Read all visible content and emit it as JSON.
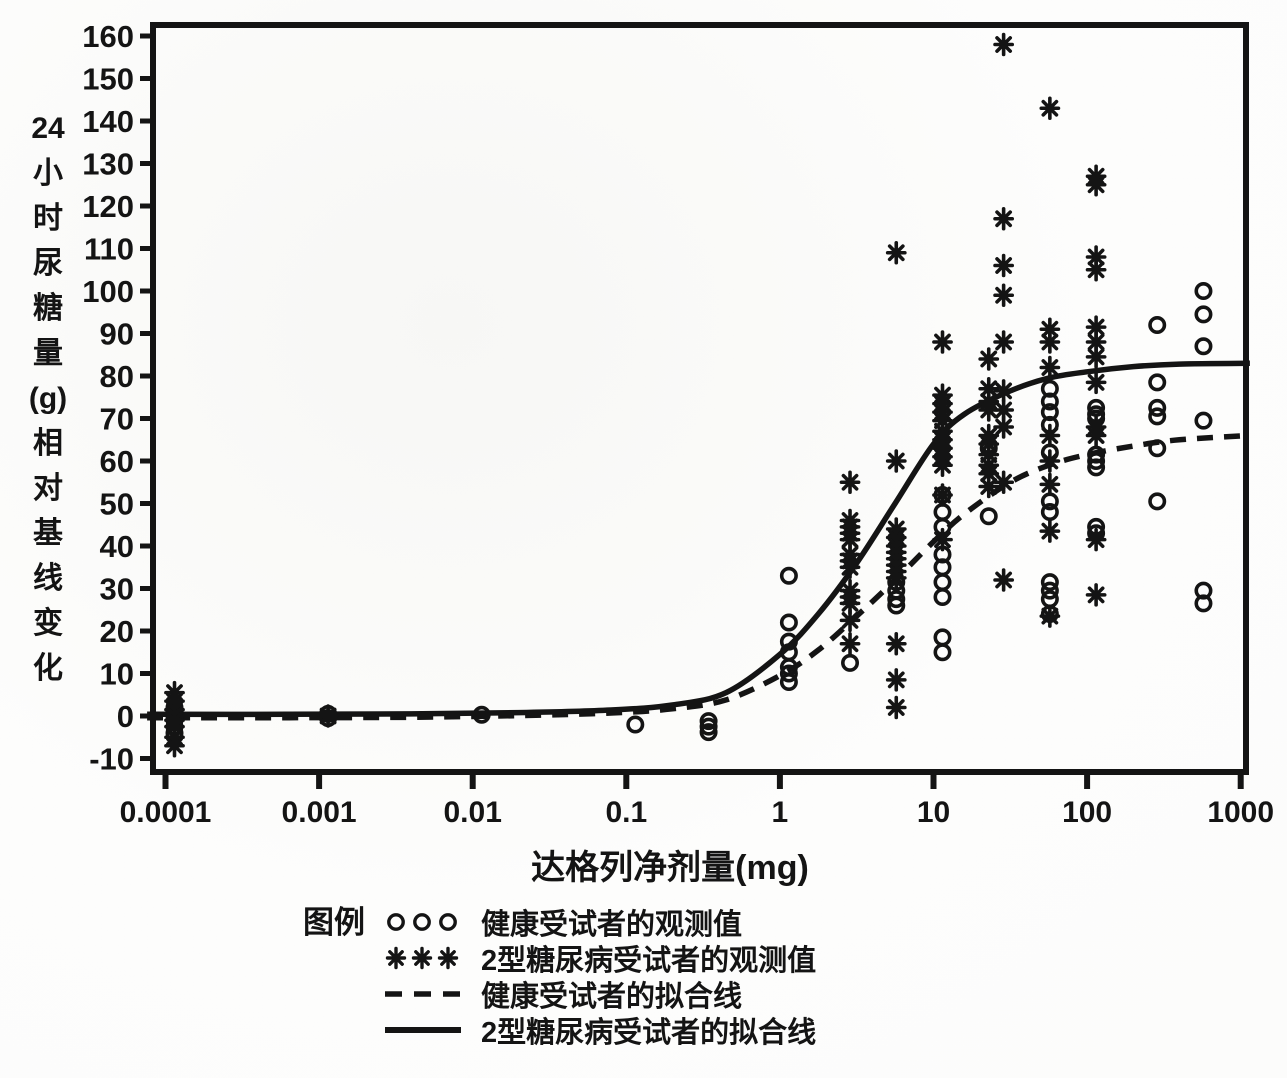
{
  "figure": {
    "background": "#fdfdfc",
    "ink": "#141414"
  },
  "legend": {
    "title": "图例"
  },
  "chart_data": {
    "type": "scatter",
    "title": "",
    "x_axis": {
      "label": "达格列净剂量(mg)",
      "scale": "log",
      "tick_values": [
        0.0001,
        0.001,
        0.01,
        0.1,
        1,
        10,
        100,
        1000
      ],
      "tick_labels": [
        "0.0001",
        "0.001",
        "0.01",
        "0.1",
        "1",
        "10",
        "100",
        "1000"
      ],
      "range_log10": [
        -4.12,
        3.08
      ]
    },
    "y_axis": {
      "label": "24小时尿糖量(g)相对基线变化",
      "label_stack": [
        "24",
        "小",
        "时",
        "尿",
        "糖",
        "量",
        "(g)",
        "相",
        "对",
        "基",
        "线",
        "变",
        "化"
      ],
      "tick_values": [
        160,
        150,
        140,
        130,
        120,
        110,
        100,
        90,
        80,
        70,
        60,
        50,
        40,
        30,
        20,
        10,
        0,
        -10
      ],
      "range": [
        -13,
        163
      ]
    },
    "grid": "off",
    "legend_position": "below",
    "series": [
      {
        "name": "健康受试者的观测值",
        "marker": "circle",
        "clusters": [
          {
            "dose": 0.0001,
            "values": [
              2,
              1,
              0,
              -1,
              -2.5,
              -4
            ]
          },
          {
            "dose": 0.001,
            "values": [
              0.5,
              -0.5
            ]
          },
          {
            "dose": 0.01,
            "values": [
              0.3
            ]
          },
          {
            "dose": 0.1,
            "values": [
              -2
            ]
          },
          {
            "dose": 0.3,
            "values": [
              -1.2,
              -2.5,
              -3.8
            ]
          },
          {
            "dose": 1,
            "values": [
              33,
              22,
              17.5,
              15,
              11.5,
              10,
              8
            ]
          },
          {
            "dose": 2.5,
            "values": [
              12.5
            ]
          },
          {
            "dose": 5,
            "values": [
              31.5,
              29.5,
              27.5,
              26
            ]
          },
          {
            "dose": 10,
            "values": [
              52,
              48,
              44.5,
              38,
              35,
              31.5,
              28,
              18.5,
              15
            ]
          },
          {
            "dose": 20,
            "values": [
              63,
              47
            ]
          },
          {
            "dose": 50,
            "values": [
              77,
              74,
              71.5,
              68.5,
              62,
              50.5,
              48,
              31.5,
              29.5,
              27.5,
              24
            ]
          },
          {
            "dose": 100,
            "values": [
              72.5,
              71,
              70,
              61.5,
              60,
              58.5,
              44.5,
              43
            ]
          },
          {
            "dose": 250,
            "values": [
              92,
              78.5,
              72.5,
              70.5,
              63,
              50.5
            ]
          },
          {
            "dose": 500,
            "values": [
              100,
              94.5,
              87,
              69.5,
              29.5,
              26.5
            ]
          }
        ]
      },
      {
        "name": "2型糖尿病受试者的观测值",
        "marker": "asterisk",
        "clusters": [
          {
            "dose": 0.0001,
            "values": [
              5.5,
              3.5,
              1.5,
              0.3,
              -1,
              -2.5,
              -5,
              -7
            ]
          },
          {
            "dose": 0.001,
            "values": [
              0
            ]
          },
          {
            "dose": 2.5,
            "values": [
              55,
              46,
              44.5,
              43,
              41.5,
              38,
              36.5,
              35,
              29.5,
              28,
              26.5,
              22.5,
              17
            ]
          },
          {
            "dose": 5,
            "values": [
              109,
              60,
              44,
              42,
              40,
              38.5,
              37,
              35.5,
              34,
              32.5,
              17,
              8.5,
              2
            ]
          },
          {
            "dose": 10,
            "values": [
              88,
              75.5,
              73.5,
              71.5,
              69.5,
              67,
              65,
              63,
              61,
              59,
              52,
              41.5
            ]
          },
          {
            "dose": 20,
            "values": [
              84,
              77,
              74,
              72,
              66,
              64,
              61.5,
              59,
              57,
              54
            ]
          },
          {
            "dose": 25,
            "values": [
              158,
              117,
              106,
              99,
              88,
              76.5,
              72,
              68,
              55,
              32
            ]
          },
          {
            "dose": 50,
            "values": [
              143,
              91,
              88,
              82,
              66,
              60,
              54.5,
              43.5,
              23.5
            ]
          },
          {
            "dose": 100,
            "values": [
              127,
              125,
              108,
              105,
              91.5,
              88,
              84.5,
              78.5,
              68,
              66,
              41.5,
              28.5
            ]
          }
        ]
      },
      {
        "name": "健康受试者的拟合线",
        "line": "dashed",
        "curve_log10x_y": [
          [
            -4.12,
            -0.4
          ],
          [
            -3.2,
            -0.4
          ],
          [
            -2.4,
            -0.3
          ],
          [
            -1.7,
            0.1
          ],
          [
            -1.1,
            0.7
          ],
          [
            -0.7,
            1.7
          ],
          [
            -0.35,
            3.8
          ],
          [
            0,
            9.5
          ],
          [
            0.25,
            15.5
          ],
          [
            0.5,
            23.5
          ],
          [
            0.75,
            32
          ],
          [
            1.0,
            41
          ],
          [
            1.2,
            47.5
          ],
          [
            1.5,
            55
          ],
          [
            1.75,
            59
          ],
          [
            2.0,
            61.5
          ],
          [
            2.3,
            63.5
          ],
          [
            2.6,
            65
          ],
          [
            3.06,
            66
          ]
        ]
      },
      {
        "name": "2型糖尿病受试者的拟合线",
        "line": "solid",
        "curve_log10x_y": [
          [
            -4.12,
            0.4
          ],
          [
            -3.2,
            0.4
          ],
          [
            -2.4,
            0.5
          ],
          [
            -1.7,
            0.8
          ],
          [
            -1.1,
            1.4
          ],
          [
            -0.7,
            2.6
          ],
          [
            -0.35,
            5.5
          ],
          [
            0,
            14.5
          ],
          [
            0.25,
            24
          ],
          [
            0.5,
            36
          ],
          [
            0.75,
            50
          ],
          [
            1.0,
            64
          ],
          [
            1.2,
            71
          ],
          [
            1.5,
            76.5
          ],
          [
            1.75,
            79.5
          ],
          [
            2.0,
            81
          ],
          [
            2.3,
            82.2
          ],
          [
            2.6,
            82.8
          ],
          [
            3.06,
            83
          ]
        ]
      }
    ]
  }
}
